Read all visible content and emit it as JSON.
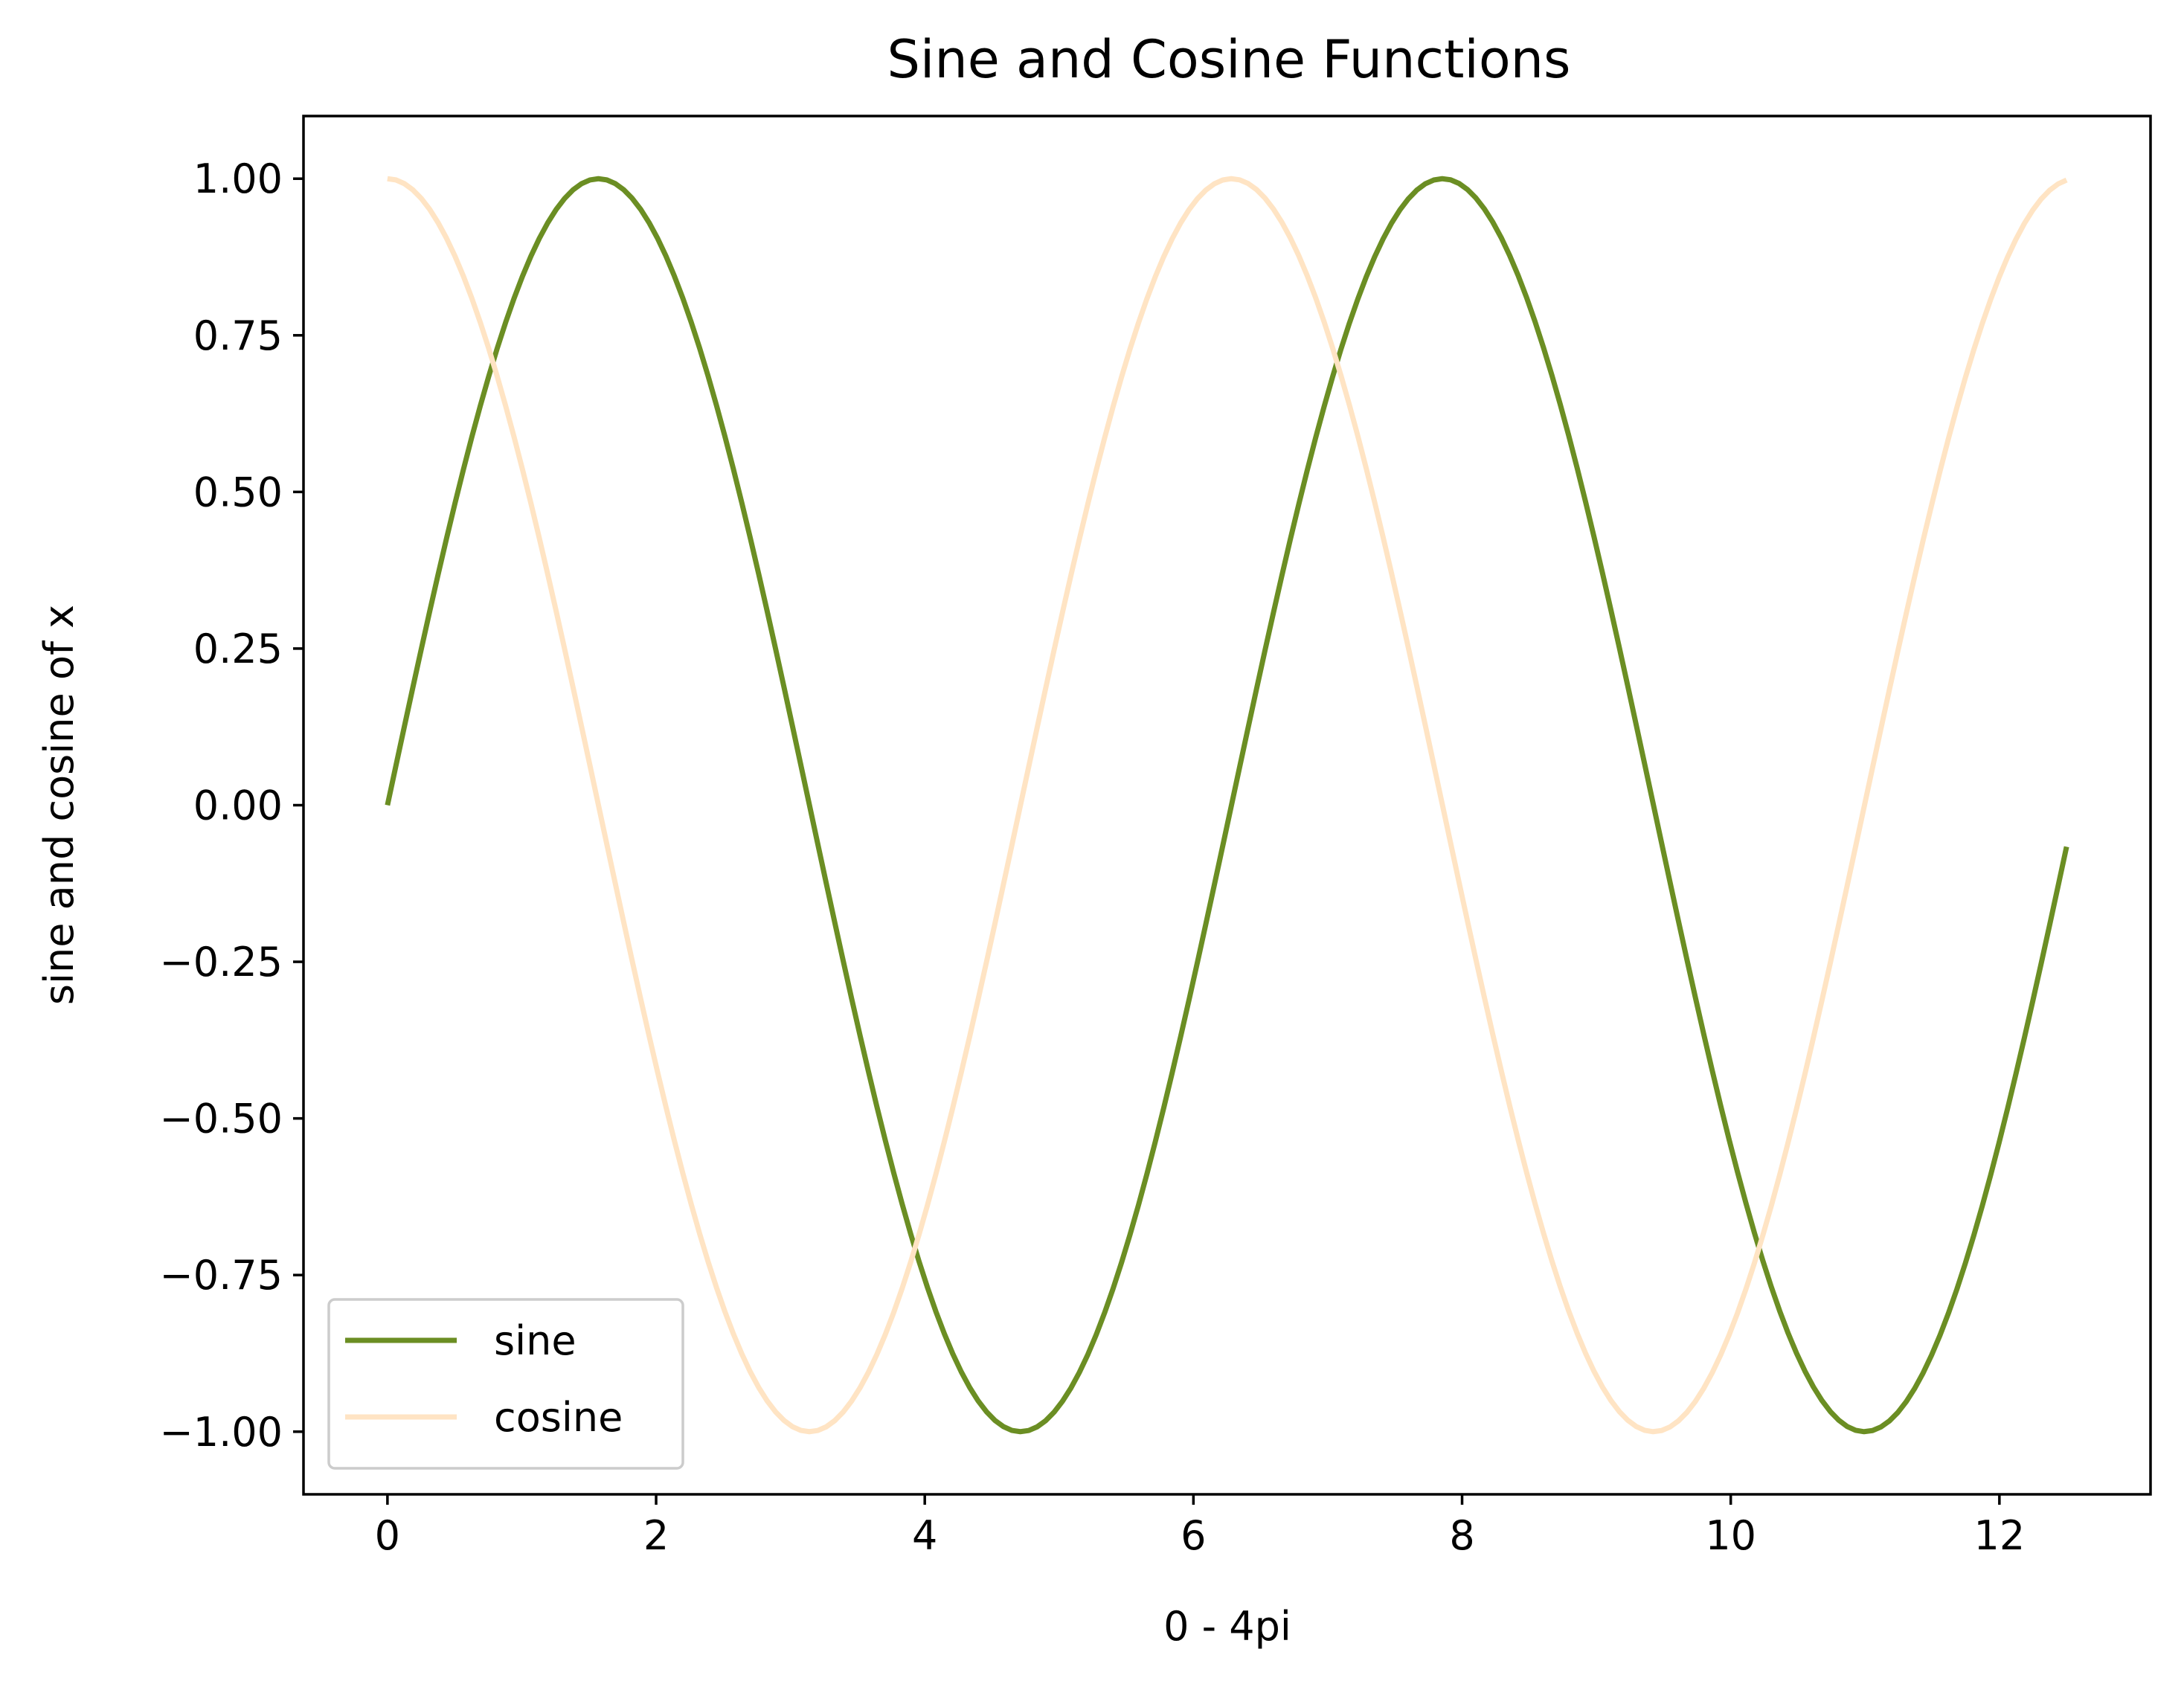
{
  "chart_data": {
    "type": "line",
    "title": "Sine and Cosine Functions",
    "xlabel": "0 - 4pi",
    "ylabel": "sine and cosine of x",
    "xlim": [
      -0.625,
      13.125
    ],
    "ylim": [
      -1.1,
      1.1
    ],
    "x_domain": [
      0,
      12.5
    ],
    "x_ticks": [
      0,
      2,
      4,
      6,
      8,
      10,
      12
    ],
    "x_tick_labels": [
      "0",
      "2",
      "4",
      "6",
      "8",
      "10",
      "12"
    ],
    "y_ticks": [
      1.0,
      0.75,
      0.5,
      0.25,
      0.0,
      -0.25,
      -0.5,
      -0.75,
      -1.0
    ],
    "y_tick_labels": [
      "1.00",
      "0.75",
      "0.50",
      "0.25",
      "0.00",
      "−0.25",
      "−0.50",
      "−0.75",
      "−1.00"
    ],
    "grid": false,
    "legend_position": "lower-left",
    "series": [
      {
        "name": "sine",
        "function": "sin",
        "color": "#6b8e23"
      },
      {
        "name": "cosine",
        "function": "cos",
        "color": "#ffe4c4"
      }
    ]
  }
}
